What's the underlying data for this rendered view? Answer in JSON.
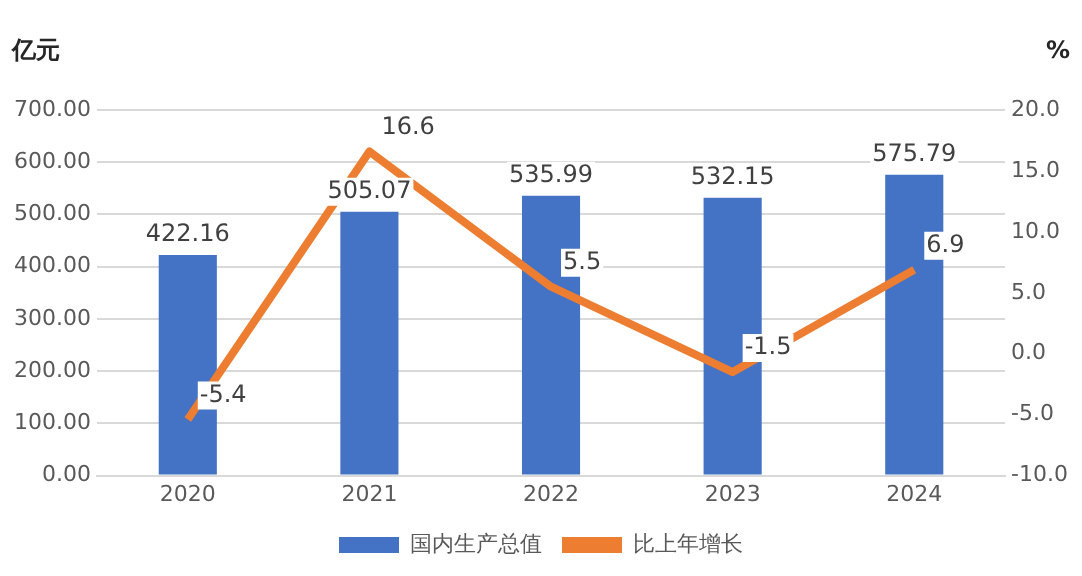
{
  "chart_data": {
    "type": "bar",
    "ylabel": "亿元",
    "y2label": "%",
    "categories": [
      "2020",
      "2021",
      "2022",
      "2023",
      "2024"
    ],
    "series": [
      {
        "name": "国内生产总值",
        "color": "#4472c4",
        "values": [
          422.16,
          505.07,
          535.99,
          532.15,
          575.79
        ]
      },
      {
        "name": "比上年增长",
        "type": "line",
        "axis": "y2",
        "color": "#ed7d31",
        "values": [
          -5.4,
          16.6,
          5.5,
          -1.5,
          6.9
        ]
      }
    ],
    "ylim": [
      0,
      700
    ],
    "yticks": [
      {
        "value": 0,
        "label": "0.00"
      },
      {
        "value": 100,
        "label": "100.00"
      },
      {
        "value": 200,
        "label": "200.00"
      },
      {
        "value": 300,
        "label": "300.00"
      },
      {
        "value": 400,
        "label": "400.00"
      },
      {
        "value": 500,
        "label": "500.00"
      },
      {
        "value": 600,
        "label": "600.00"
      },
      {
        "value": 700,
        "label": "700.00"
      }
    ],
    "y2lim": [
      -10,
      20
    ],
    "y2ticks": [
      {
        "value": -10,
        "label": "-10.0"
      },
      {
        "value": -5,
        "label": "-5.0"
      },
      {
        "value": 0,
        "label": "0.0"
      },
      {
        "value": 5,
        "label": "5.0"
      },
      {
        "value": 10,
        "label": "10.0"
      },
      {
        "value": 15,
        "label": "15.0"
      },
      {
        "value": 20,
        "label": "20.0"
      }
    ],
    "grid": "y",
    "legend": "bottom",
    "marker": "none",
    "data_labels": true
  }
}
